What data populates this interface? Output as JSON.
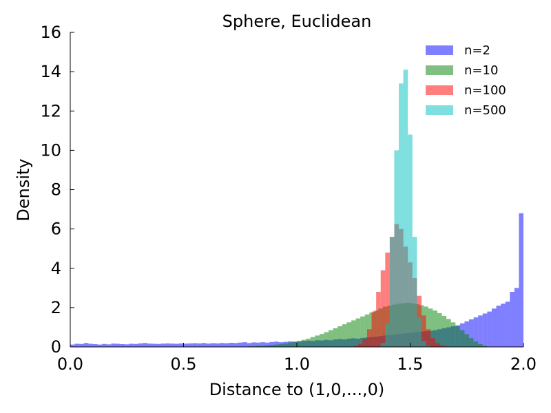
{
  "chart_data": {
    "type": "histogram",
    "title": "Sphere, Euclidean",
    "xlabel": "Distance to (1,0,...,0)",
    "ylabel": "Density",
    "xlim": [
      0.0,
      2.0
    ],
    "ylim": [
      0,
      16
    ],
    "x_ticks": [
      "0.0",
      "0.5",
      "1.0",
      "1.5",
      "2.0"
    ],
    "y_ticks": [
      "0",
      "2",
      "4",
      "6",
      "8",
      "10",
      "12",
      "14",
      "16"
    ],
    "legend_position": "top-right",
    "grid": false,
    "bin_width": 0.02,
    "series": [
      {
        "name": "n=2",
        "color": "#0000ff",
        "start": 0.0,
        "values": [
          0.12,
          0.16,
          0.15,
          0.2,
          0.16,
          0.14,
          0.12,
          0.15,
          0.13,
          0.17,
          0.16,
          0.14,
          0.13,
          0.16,
          0.15,
          0.18,
          0.2,
          0.17,
          0.16,
          0.15,
          0.17,
          0.18,
          0.17,
          0.16,
          0.18,
          0.17,
          0.18,
          0.19,
          0.18,
          0.2,
          0.17,
          0.19,
          0.18,
          0.2,
          0.19,
          0.21,
          0.2,
          0.22,
          0.24,
          0.2,
          0.23,
          0.22,
          0.24,
          0.22,
          0.25,
          0.27,
          0.24,
          0.26,
          0.28,
          0.27,
          0.28,
          0.3,
          0.32,
          0.3,
          0.34,
          0.33,
          0.36,
          0.34,
          0.38,
          0.4,
          0.38,
          0.42,
          0.44,
          0.42,
          0.46,
          0.48,
          0.5,
          0.52,
          0.55,
          0.58,
          0.6,
          0.62,
          0.65,
          0.68,
          0.7,
          0.72,
          0.75,
          0.78,
          0.8,
          0.82,
          0.85,
          0.9,
          0.95,
          1.0,
          1.05,
          1.1,
          1.2,
          1.3,
          1.4,
          1.5,
          1.6,
          1.7,
          1.8,
          1.95,
          2.1,
          2.2,
          2.3,
          2.8,
          3.0,
          6.8
        ]
      },
      {
        "name": "n=10",
        "color": "#008000",
        "start": 0.7,
        "values": [
          0.01,
          0.01,
          0.02,
          0.02,
          0.03,
          0.04,
          0.05,
          0.06,
          0.08,
          0.1,
          0.12,
          0.15,
          0.18,
          0.22,
          0.26,
          0.3,
          0.36,
          0.42,
          0.5,
          0.58,
          0.66,
          0.75,
          0.85,
          0.95,
          1.05,
          1.15,
          1.25,
          1.35,
          1.45,
          1.55,
          1.65,
          1.75,
          1.85,
          1.95,
          2.05,
          2.1,
          2.15,
          2.2,
          2.22,
          2.25,
          2.22,
          2.18,
          2.12,
          2.05,
          1.95,
          1.85,
          1.72,
          1.58,
          1.42,
          1.25,
          1.05,
          0.85,
          0.65,
          0.45,
          0.28,
          0.14,
          0.06,
          0.02,
          0.01,
          0.0,
          0,
          0,
          0,
          0,
          0
        ]
      },
      {
        "name": "n=100",
        "color": "#ff0000",
        "start": 1.25,
        "values": [
          0.05,
          0.15,
          0.4,
          0.9,
          1.8,
          2.8,
          3.9,
          4.8,
          5.6,
          6.25,
          6.0,
          5.1,
          4.3,
          3.5,
          2.6,
          1.6,
          0.9,
          0.45,
          0.2,
          0.08,
          0.03
        ]
      },
      {
        "name": "n=500",
        "color": "#00c0c0",
        "start": 1.37,
        "values": [
          0.2,
          1.2,
          5.6,
          10.0,
          13.4,
          14.1,
          10.8,
          5.6,
          1.5,
          0.3,
          0.05
        ]
      }
    ]
  }
}
